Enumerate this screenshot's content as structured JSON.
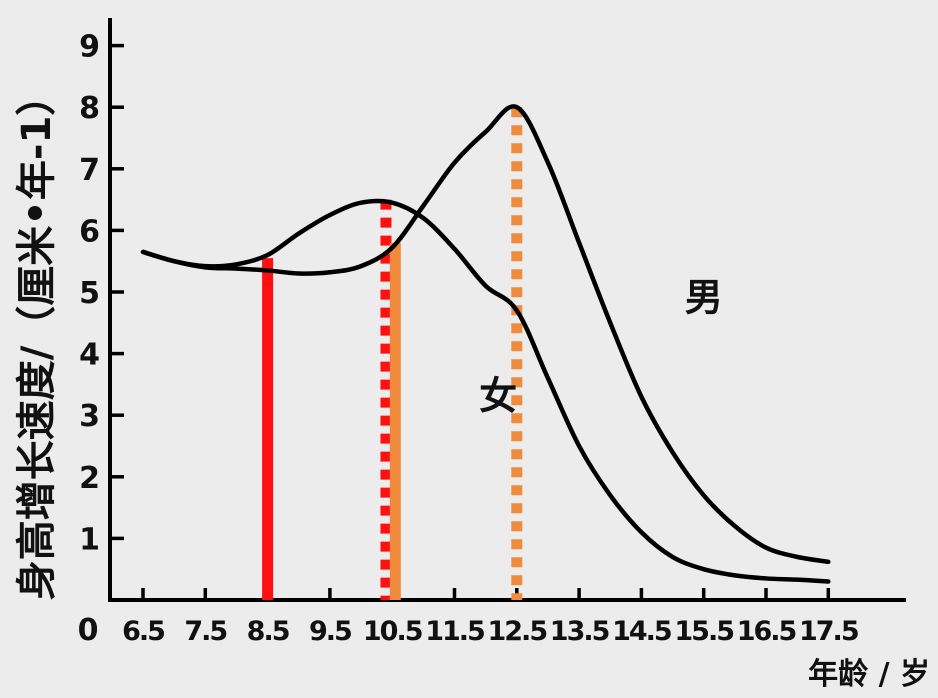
{
  "chart_data": {
    "type": "line",
    "ylabel": "身高增长速度/（厘米•年-1）",
    "xlabel": "年龄 / 岁",
    "origin_label": "0",
    "x_ticks": [
      "6.5",
      "7.5",
      "8.5",
      "9.5",
      "10.5",
      "11.5",
      "12.5",
      "13.5",
      "14.5",
      "15.5",
      "16.5",
      "17.5"
    ],
    "y_ticks": [
      "1",
      "2",
      "3",
      "4",
      "5",
      "6",
      "7",
      "8",
      "9"
    ],
    "xlim": [
      6.5,
      17.5
    ],
    "ylim": [
      0,
      9.4
    ],
    "series": [
      {
        "name": "男",
        "color": "#000000",
        "points": [
          [
            6.5,
            5.65
          ],
          [
            7.0,
            5.5
          ],
          [
            7.5,
            5.4
          ],
          [
            8.0,
            5.38
          ],
          [
            8.5,
            5.35
          ],
          [
            9.0,
            5.3
          ],
          [
            9.5,
            5.32
          ],
          [
            10.0,
            5.42
          ],
          [
            10.5,
            5.72
          ],
          [
            11.0,
            6.4
          ],
          [
            11.5,
            7.1
          ],
          [
            12.0,
            7.6
          ],
          [
            12.5,
            8.0
          ],
          [
            13.0,
            7.1
          ],
          [
            13.5,
            5.8
          ],
          [
            14.0,
            4.5
          ],
          [
            14.5,
            3.3
          ],
          [
            15.0,
            2.4
          ],
          [
            15.5,
            1.7
          ],
          [
            16.0,
            1.2
          ],
          [
            16.5,
            0.85
          ],
          [
            17.0,
            0.7
          ],
          [
            17.5,
            0.62
          ]
        ]
      },
      {
        "name": "女",
        "color": "#000000",
        "points": [
          [
            6.5,
            5.65
          ],
          [
            7.0,
            5.5
          ],
          [
            7.5,
            5.42
          ],
          [
            8.0,
            5.45
          ],
          [
            8.5,
            5.6
          ],
          [
            9.0,
            5.95
          ],
          [
            9.5,
            6.25
          ],
          [
            10.0,
            6.45
          ],
          [
            10.5,
            6.45
          ],
          [
            11.0,
            6.2
          ],
          [
            11.5,
            5.7
          ],
          [
            12.0,
            5.1
          ],
          [
            12.5,
            4.7
          ],
          [
            13.0,
            3.6
          ],
          [
            13.5,
            2.5
          ],
          [
            14.0,
            1.7
          ],
          [
            14.5,
            1.1
          ],
          [
            15.0,
            0.7
          ],
          [
            15.5,
            0.5
          ],
          [
            16.0,
            0.4
          ],
          [
            16.5,
            0.35
          ],
          [
            17.0,
            0.33
          ],
          [
            17.5,
            0.3
          ]
        ]
      }
    ],
    "annotations": [
      {
        "text": "男",
        "x": 15.5,
        "y": 4.7
      },
      {
        "text": "女",
        "x": 12.2,
        "y": 3.1
      }
    ],
    "reference_lines": [
      {
        "x": 8.5,
        "y_top": 5.55,
        "color": "#ff1010",
        "style": "solid"
      },
      {
        "x": 10.4,
        "y_top": 6.5,
        "color": "#ff1010",
        "style": "dotted"
      },
      {
        "x": 10.55,
        "y_top": 5.8,
        "color": "#f08a3c",
        "style": "solid"
      },
      {
        "x": 12.5,
        "y_top": 8.0,
        "color": "#f08a3c",
        "style": "dotted"
      }
    ],
    "grid": false,
    "legend": "none"
  }
}
